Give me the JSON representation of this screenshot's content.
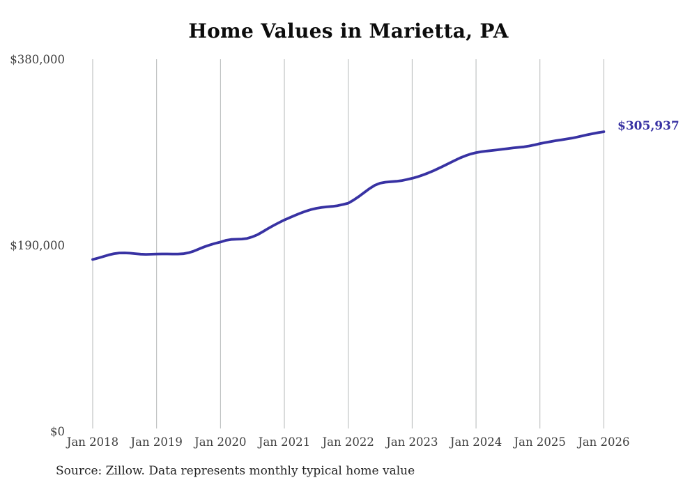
{
  "chart_data": {
    "type": "line",
    "title": "Home Values in Marietta, PA",
    "source": "Source: Zillow. Data represents monthly typical home value",
    "end_label": "$305,937",
    "line_color": "#3832a3",
    "grid": "vertical-only",
    "legend": "none",
    "ylim": [
      0,
      380000
    ],
    "y_ticks": [
      {
        "label": "$0",
        "value": 0
      },
      {
        "label": "$190,000",
        "value": 190000
      },
      {
        "label": "$380,000",
        "value": 380000
      }
    ],
    "x_tick_labels": [
      "Jan 2018",
      "Jan 2019",
      "Jan 2020",
      "Jan 2021",
      "Jan 2022",
      "Jan 2023",
      "Jan 2024",
      "Jan 2025",
      "Jan 2026"
    ],
    "series": [
      {
        "name": "Typical home value",
        "frequency": "monthly",
        "start_month": "Jan 2018",
        "end_month": "Jan 2026",
        "final_value": 305937,
        "values": [
          175500,
          176900,
          178500,
          180100,
          181400,
          182100,
          182200,
          181900,
          181400,
          180900,
          180700,
          180800,
          181000,
          181100,
          181100,
          181000,
          181000,
          181300,
          182300,
          184000,
          186300,
          188400,
          190300,
          191900,
          193300,
          195000,
          195900,
          196100,
          196300,
          197000,
          198600,
          200900,
          204000,
          207200,
          210300,
          213100,
          215800,
          218200,
          220500,
          222700,
          224700,
          226400,
          227700,
          228600,
          229200,
          229700,
          230400,
          231600,
          233000,
          236100,
          239800,
          243900,
          247900,
          251300,
          253400,
          254400,
          254900,
          255300,
          256000,
          257100,
          258400,
          259900,
          261700,
          263800,
          266100,
          268600,
          271200,
          273900,
          276600,
          279200,
          281400,
          283200,
          284600,
          285500,
          286200,
          286800,
          287400,
          288100,
          288800,
          289400,
          290000,
          290500,
          291400,
          292500,
          293800,
          294900,
          295900,
          296800,
          297700,
          298500,
          299400,
          300500,
          301700,
          303000,
          304100,
          305100,
          305937
        ]
      }
    ]
  }
}
